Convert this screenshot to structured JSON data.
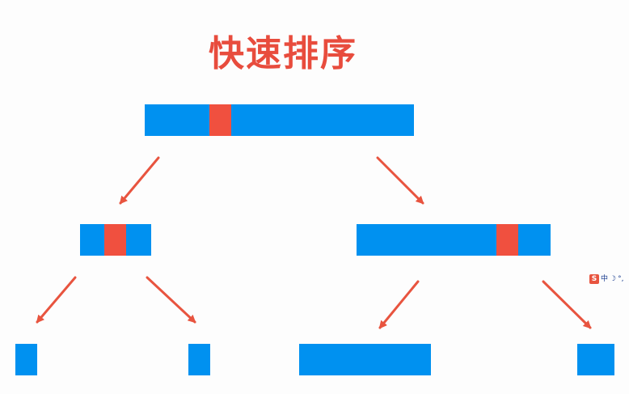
{
  "title": "快速排序",
  "colors": {
    "array": "#0091f0",
    "pivot": "#f0503f",
    "arrow": "#e8543f",
    "title": "#e84c3d"
  },
  "levels": [
    {
      "nodes": [
        {
          "id": "root",
          "has_pivot": true
        }
      ]
    },
    {
      "nodes": [
        {
          "id": "left-sub",
          "has_pivot": true
        },
        {
          "id": "right-sub",
          "has_pivot": true
        }
      ]
    },
    {
      "nodes": [
        {
          "id": "leaf-1",
          "has_pivot": false
        },
        {
          "id": "leaf-2",
          "has_pivot": false
        },
        {
          "id": "leaf-3",
          "has_pivot": false
        },
        {
          "id": "leaf-4",
          "has_pivot": false
        }
      ]
    }
  ],
  "edges": [
    {
      "from": "root",
      "to": "left-sub"
    },
    {
      "from": "root",
      "to": "right-sub"
    },
    {
      "from": "left-sub",
      "to": "leaf-1"
    },
    {
      "from": "left-sub",
      "to": "leaf-2"
    },
    {
      "from": "right-sub",
      "to": "leaf-3"
    },
    {
      "from": "right-sub",
      "to": "leaf-4"
    }
  ],
  "ime_toolbar": {
    "logo": "S",
    "mode": "中",
    "moon_icon": "moon-icon",
    "punct_icon": "punctuation-icon",
    "logo_color": "#e8543f"
  }
}
